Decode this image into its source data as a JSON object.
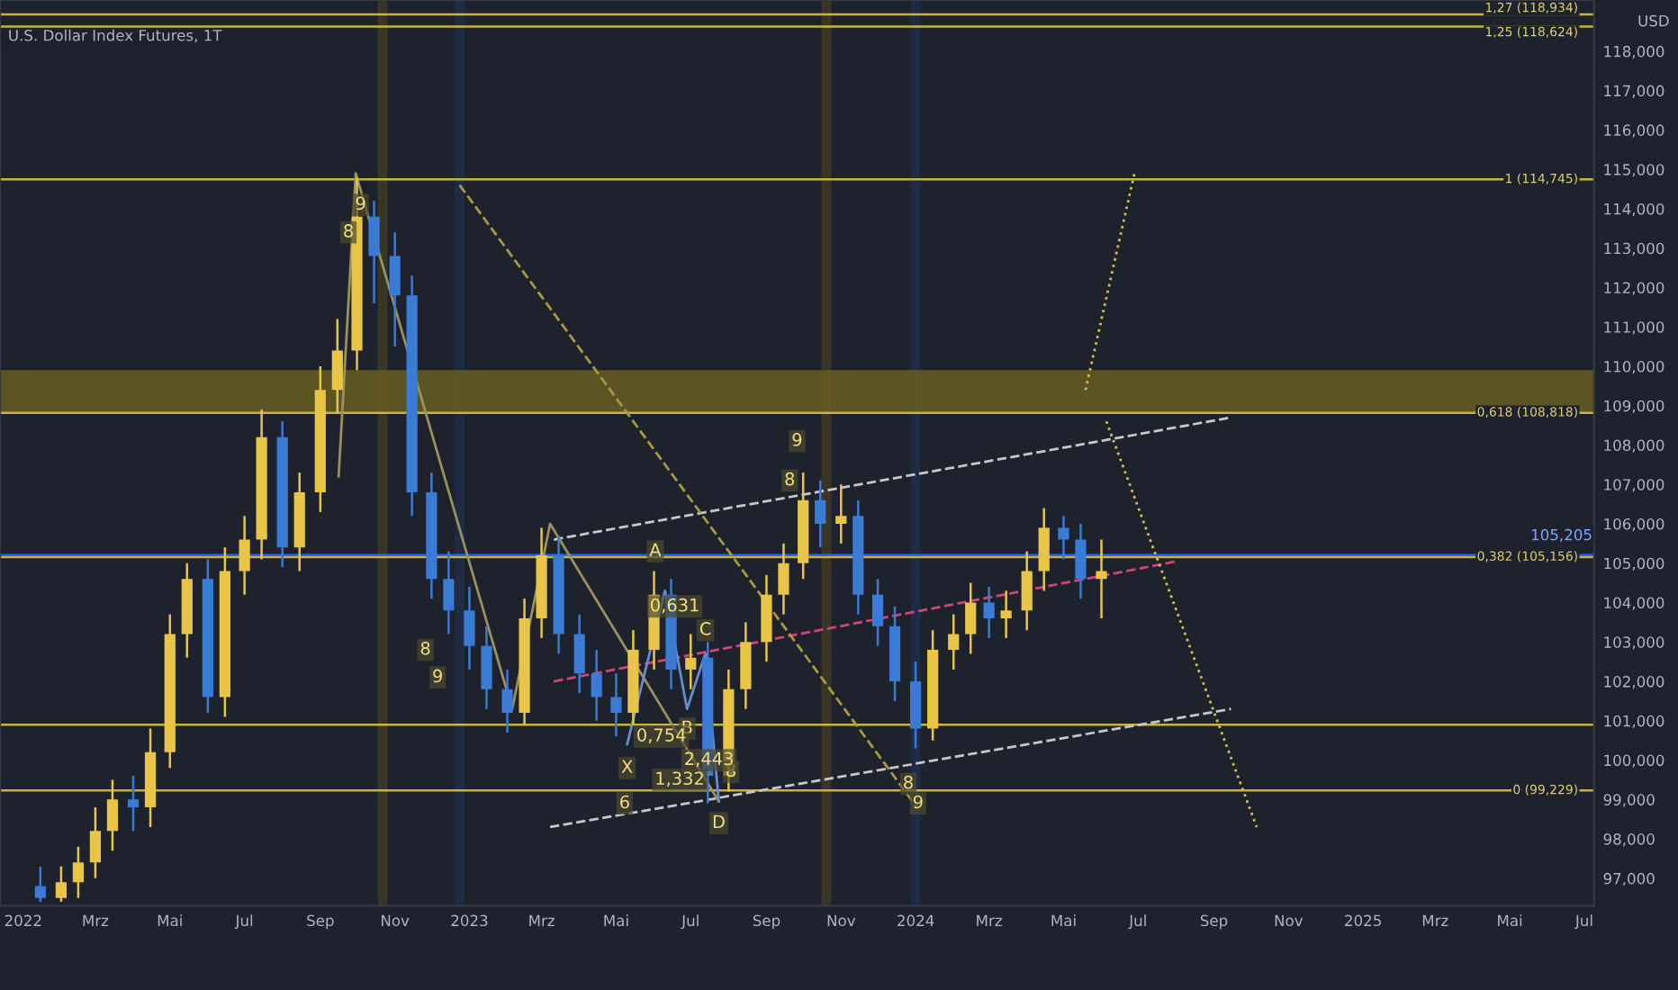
{
  "chart_data": {
    "type": "candlestick",
    "title": "U.S. Dollar Index Futures, 1T",
    "x": [
      "2022-01-15",
      "2022-02-01",
      "2022-02-15",
      "2022-03-01",
      "2022-03-15",
      "2022-04-01",
      "2022-04-15",
      "2022-05-01",
      "2022-05-15",
      "2022-06-01",
      "2022-06-15",
      "2022-07-01",
      "2022-07-15",
      "2022-08-01",
      "2022-08-15",
      "2022-09-01",
      "2022-09-15",
      "2022-10-01",
      "2022-10-15",
      "2022-11-01",
      "2022-11-15",
      "2022-12-01",
      "2022-12-15",
      "2023-01-01",
      "2023-01-15",
      "2023-02-01",
      "2023-02-15",
      "2023-03-01",
      "2023-03-15",
      "2023-04-01",
      "2023-04-15",
      "2023-05-01",
      "2023-05-15",
      "2023-06-01",
      "2023-06-15",
      "2023-07-01",
      "2023-07-15",
      "2023-08-01",
      "2023-08-15",
      "2023-09-01",
      "2023-09-15",
      "2023-10-01",
      "2023-10-15",
      "2023-11-01",
      "2023-11-15",
      "2023-12-01",
      "2023-12-15",
      "2024-01-01",
      "2024-01-15",
      "2024-02-01",
      "2024-02-15",
      "2024-03-01",
      "2024-03-15",
      "2024-04-01",
      "2024-04-15",
      "2024-05-01",
      "2024-05-15",
      "2024-06-01"
    ],
    "ohlc": [
      [
        96.8,
        97.3,
        96.4,
        96.5
      ],
      [
        96.5,
        97.3,
        96.4,
        96.9
      ],
      [
        96.9,
        97.8,
        96.5,
        97.4
      ],
      [
        97.4,
        98.8,
        97.0,
        98.2
      ],
      [
        98.2,
        99.5,
        97.7,
        99.0
      ],
      [
        99.0,
        99.6,
        98.2,
        98.8
      ],
      [
        98.8,
        100.8,
        98.3,
        100.2
      ],
      [
        100.2,
        103.7,
        99.8,
        103.2
      ],
      [
        103.2,
        105.0,
        102.6,
        104.6
      ],
      [
        104.6,
        105.1,
        101.2,
        101.6
      ],
      [
        101.6,
        105.4,
        101.1,
        104.8
      ],
      [
        104.8,
        106.2,
        104.2,
        105.6
      ],
      [
        105.6,
        108.9,
        105.1,
        108.2
      ],
      [
        108.2,
        108.6,
        104.9,
        105.4
      ],
      [
        105.4,
        107.3,
        104.8,
        106.8
      ],
      [
        106.8,
        110.0,
        106.3,
        109.4
      ],
      [
        109.4,
        111.2,
        108.8,
        110.4
      ],
      [
        110.4,
        114.8,
        109.9,
        113.8
      ],
      [
        113.8,
        114.2,
        111.6,
        112.8
      ],
      [
        112.8,
        113.4,
        110.5,
        111.8
      ],
      [
        111.8,
        112.3,
        106.2,
        106.8
      ],
      [
        106.8,
        107.3,
        104.1,
        104.6
      ],
      [
        104.6,
        105.3,
        103.2,
        103.8
      ],
      [
        103.8,
        104.4,
        102.3,
        102.9
      ],
      [
        102.9,
        103.4,
        101.3,
        101.8
      ],
      [
        101.8,
        102.3,
        100.7,
        101.2
      ],
      [
        101.2,
        104.1,
        100.9,
        103.6
      ],
      [
        103.6,
        105.9,
        103.1,
        105.2
      ],
      [
        105.2,
        105.7,
        102.7,
        103.2
      ],
      [
        103.2,
        103.7,
        101.7,
        102.2
      ],
      [
        102.2,
        102.8,
        101.0,
        101.6
      ],
      [
        101.6,
        102.2,
        100.6,
        101.2
      ],
      [
        101.2,
        103.3,
        100.9,
        102.8
      ],
      [
        102.8,
        104.8,
        102.3,
        104.2
      ],
      [
        104.2,
        104.6,
        101.8,
        102.3
      ],
      [
        102.3,
        103.2,
        101.8,
        102.6
      ],
      [
        102.6,
        103.0,
        98.9,
        99.6
      ],
      [
        99.6,
        102.3,
        99.2,
        101.8
      ],
      [
        101.8,
        103.5,
        101.3,
        103.0
      ],
      [
        103.0,
        104.7,
        102.5,
        104.2
      ],
      [
        104.2,
        105.5,
        103.7,
        105.0
      ],
      [
        105.0,
        107.3,
        104.6,
        106.6
      ],
      [
        106.6,
        107.1,
        105.4,
        106.0
      ],
      [
        106.0,
        107.0,
        105.5,
        106.2
      ],
      [
        106.2,
        106.6,
        103.7,
        104.2
      ],
      [
        104.2,
        104.6,
        102.9,
        103.4
      ],
      [
        103.4,
        103.9,
        101.5,
        102.0
      ],
      [
        102.0,
        102.5,
        100.3,
        100.8
      ],
      [
        100.8,
        103.3,
        100.5,
        102.8
      ],
      [
        102.8,
        103.7,
        102.3,
        103.2
      ],
      [
        103.2,
        104.5,
        102.7,
        104.0
      ],
      [
        104.0,
        104.4,
        103.1,
        103.6
      ],
      [
        103.6,
        104.3,
        103.1,
        103.8
      ],
      [
        103.8,
        105.3,
        103.3,
        104.8
      ],
      [
        104.8,
        106.4,
        104.3,
        105.9
      ],
      [
        105.9,
        106.2,
        105.1,
        105.6
      ],
      [
        105.6,
        106.0,
        104.1,
        104.6
      ],
      [
        104.6,
        105.6,
        103.6,
        104.8
      ]
    ],
    "colors": [
      "#3a7bd5",
      "#e8c547",
      "#e8c547",
      "#e8c547",
      "#e8c547",
      "#3a7bd5",
      "#e8c547",
      "#e8c547",
      "#e8c547",
      "#3a7bd5",
      "#e8c547",
      "#e8c547",
      "#e8c547",
      "#3a7bd5",
      "#e8c547",
      "#e8c547",
      "#e8c547",
      "#e8c547",
      "#3a7bd5",
      "#3a7bd5",
      "#3a7bd5",
      "#3a7bd5",
      "#3a7bd5",
      "#3a7bd5",
      "#3a7bd5",
      "#3a7bd5",
      "#e8c547",
      "#e8c547",
      "#3a7bd5",
      "#3a7bd5",
      "#3a7bd5",
      "#3a7bd5",
      "#e8c547",
      "#e8c547",
      "#3a7bd5",
      "#e8c547",
      "#3a7bd5",
      "#e8c547",
      "#e8c547",
      "#e8c547",
      "#e8c547",
      "#e8c547",
      "#3a7bd5",
      "#e8c547",
      "#3a7bd5",
      "#3a7bd5",
      "#3a7bd5",
      "#3a7bd5",
      "#e8c547",
      "#e8c547",
      "#e8c547",
      "#3a7bd5",
      "#e8c547",
      "#e8c547",
      "#e8c547",
      "#3a7bd5",
      "#3a7bd5",
      "#e8c547"
    ],
    "series": [
      {
        "type": "line",
        "x": [
          "2023-03-11",
          "2024-09-15"
        ],
        "values": [
          105.6,
          108.7
        ],
        "color": "#c8c8c8",
        "line_style": "dashed"
      },
      {
        "type": "line",
        "x": [
          "2023-03-08",
          "2024-09-15"
        ],
        "values": [
          98.3,
          101.3
        ],
        "color": "#c8c8c8",
        "line_style": "dashed"
      },
      {
        "type": "line",
        "x": [
          "2023-03-11",
          "2024-08-02"
        ],
        "values": [
          102.0,
          105.05
        ],
        "color": "#d0457a",
        "line_style": "dashed"
      },
      {
        "type": "line",
        "x": [
          "2022-12-24",
          "2024-01-02"
        ],
        "values": [
          114.6,
          98.8
        ],
        "color": "#a89a40",
        "line_style": "dashed"
      },
      {
        "type": "line",
        "x": [
          "2024-06-05",
          "2024-10-06"
        ],
        "values": [
          108.6,
          98.3
        ],
        "color": "#d4c04a",
        "line_style": "dotted"
      },
      {
        "type": "line",
        "x": [
          "2024-05-19",
          "2024-06-28"
        ],
        "values": [
          109.4,
          114.9
        ],
        "color": "#d4c04a",
        "line_style": "dotted"
      },
      {
        "type": "line",
        "x": [
          "2022-09-16",
          "2022-09-30",
          "2023-02-05",
          "2023-03-08",
          "2023-07-24"
        ],
        "values": [
          107.2,
          114.9,
          101.3,
          106.0,
          98.95
        ],
        "color": "#9a9060",
        "line_style": "solid"
      },
      {
        "type": "line",
        "x": [
          "2023-05-10",
          "2023-06-10",
          "2023-06-28",
          "2023-07-13",
          "2023-07-24"
        ],
        "values": [
          100.4,
          104.3,
          101.3,
          102.7,
          98.95
        ],
        "color": "#6a8ccc",
        "line_style": "solid"
      }
    ],
    "xlim": [
      "2021-12-13",
      "2025-07-09"
    ],
    "xticks": [
      {
        "value": "2022-01-01",
        "label": "2022"
      },
      {
        "value": "2022-03-01",
        "label": "Mrz"
      },
      {
        "value": "2022-05-01",
        "label": "Mai"
      },
      {
        "value": "2022-07-01",
        "label": "Jul"
      },
      {
        "value": "2022-09-01",
        "label": "Sep"
      },
      {
        "value": "2022-11-01",
        "label": "Nov"
      },
      {
        "value": "2023-01-01",
        "label": "2023"
      },
      {
        "value": "2023-03-01",
        "label": "Mrz"
      },
      {
        "value": "2023-05-01",
        "label": "Mai"
      },
      {
        "value": "2023-07-01",
        "label": "Jul"
      },
      {
        "value": "2023-09-01",
        "label": "Sep"
      },
      {
        "value": "2023-11-01",
        "label": "Nov"
      },
      {
        "value": "2024-01-01",
        "label": "2024"
      },
      {
        "value": "2024-03-01",
        "label": "Mrz"
      },
      {
        "value": "2024-05-01",
        "label": "Mai"
      },
      {
        "value": "2024-07-01",
        "label": "Jul"
      },
      {
        "value": "2024-09-01",
        "label": "Sep"
      },
      {
        "value": "2024-11-01",
        "label": "Nov"
      },
      {
        "value": "2025-01-01",
        "label": "2025"
      },
      {
        "value": "2025-03-01",
        "label": "Mrz"
      },
      {
        "value": "2025-05-01",
        "label": "Mai"
      },
      {
        "value": "2025-07-01",
        "label": "Jul"
      }
    ],
    "ylim": [
      96.3,
      119.3
    ],
    "yticks": [
      {
        "value": 97,
        "label": "97,000"
      },
      {
        "value": 98,
        "label": "98,000"
      },
      {
        "value": 99,
        "label": "99,000"
      },
      {
        "value": 100,
        "label": "100,000"
      },
      {
        "value": 101,
        "label": "101,000"
      },
      {
        "value": 102,
        "label": "102,000"
      },
      {
        "value": 103,
        "label": "103,000"
      },
      {
        "value": 104,
        "label": "104,000"
      },
      {
        "value": 105,
        "label": "105,000"
      },
      {
        "value": 106,
        "label": "106,000"
      },
      {
        "value": 107,
        "label": "107,000"
      },
      {
        "value": 108,
        "label": "108,000"
      },
      {
        "value": 109,
        "label": "109,000"
      },
      {
        "value": 110,
        "label": "110,000"
      },
      {
        "value": 111,
        "label": "111,000"
      },
      {
        "value": 112,
        "label": "112,000"
      },
      {
        "value": 113,
        "label": "113,000"
      },
      {
        "value": 114,
        "label": "114,000"
      },
      {
        "value": 115,
        "label": "115,000"
      },
      {
        "value": 116,
        "label": "116,000"
      },
      {
        "value": 117,
        "label": "117,000"
      },
      {
        "value": 118,
        "label": "118,000"
      }
    ],
    "ref_lines": [
      {
        "axis": "y",
        "value": 118.934,
        "label": "1,27 (118,934)",
        "color": "#c8b440"
      },
      {
        "axis": "y",
        "value": 118.624,
        "label": "1,25 (118,624)",
        "color": "#c8b440"
      },
      {
        "axis": "y",
        "value": 114.745,
        "label": "1 (114,745)",
        "color": "#c8b440"
      },
      {
        "axis": "y",
        "value": 108.818,
        "label": "0,618 (108,818)",
        "color": "#c8b440"
      },
      {
        "axis": "y",
        "value": 105.156,
        "label": "0,382 (105,156)",
        "color": "#c8b440"
      },
      {
        "axis": "y",
        "value": 100.9,
        "color": "#c8b440"
      },
      {
        "axis": "y",
        "value": 99.229,
        "label": "0 (99,229)",
        "color": "#c8b440"
      },
      {
        "axis": "y",
        "value": 105.205,
        "label": "105,205",
        "color": "#2962ff"
      }
    ],
    "bands": [
      {
        "axis": "y",
        "from": 108.8,
        "to": 109.9,
        "color": "#6b6220"
      },
      {
        "axis": "x",
        "from": "2022-10-18",
        "to": "2022-10-26",
        "color": "#3a3626"
      },
      {
        "axis": "x",
        "from": "2022-12-20",
        "to": "2022-12-28",
        "color": "#1f2c44"
      },
      {
        "axis": "x",
        "from": "2023-10-16",
        "to": "2023-10-24",
        "color": "#3a3626"
      },
      {
        "axis": "x",
        "from": "2023-12-28",
        "to": "2024-01-05",
        "color": "#1f2c44"
      }
    ],
    "annotations": [
      {
        "text": "8",
        "x": "2022-09-24",
        "y": 113.4
      },
      {
        "text": "9",
        "x": "2022-10-04",
        "y": 114.1
      },
      {
        "text": "8",
        "x": "2022-11-26",
        "y": 102.8
      },
      {
        "text": "9",
        "x": "2022-12-06",
        "y": 102.1
      },
      {
        "text": "8",
        "x": "2023-09-20",
        "y": 107.1
      },
      {
        "text": "9",
        "x": "2023-09-26",
        "y": 108.1
      },
      {
        "text": "8",
        "x": "2023-08-03",
        "y": 99.7
      },
      {
        "text": "8",
        "x": "2023-12-26",
        "y": 99.4
      },
      {
        "text": "9",
        "x": "2024-01-03",
        "y": 98.9
      },
      {
        "text": "6",
        "x": "2023-05-08",
        "y": 98.9
      },
      {
        "text": "X",
        "x": "2023-05-10",
        "y": 99.8
      },
      {
        "text": "A",
        "x": "2023-06-02",
        "y": 105.3
      },
      {
        "text": "B",
        "x": "2023-06-28",
        "y": 100.8
      },
      {
        "text": "C",
        "x": "2023-07-13",
        "y": 103.3
      },
      {
        "text": "D",
        "x": "2023-07-24",
        "y": 98.4
      },
      {
        "text": "0,754",
        "x": "2023-06-07",
        "y": 100.6
      },
      {
        "text": "1,332",
        "x": "2023-06-22",
        "y": 99.5
      },
      {
        "text": "2,443",
        "x": "2023-07-16",
        "y": 100.0
      },
      {
        "text": "0,631",
        "x": "2023-06-18",
        "y": 103.9
      },
      "USD"
    ],
    "grid": false,
    "legend": false
  }
}
